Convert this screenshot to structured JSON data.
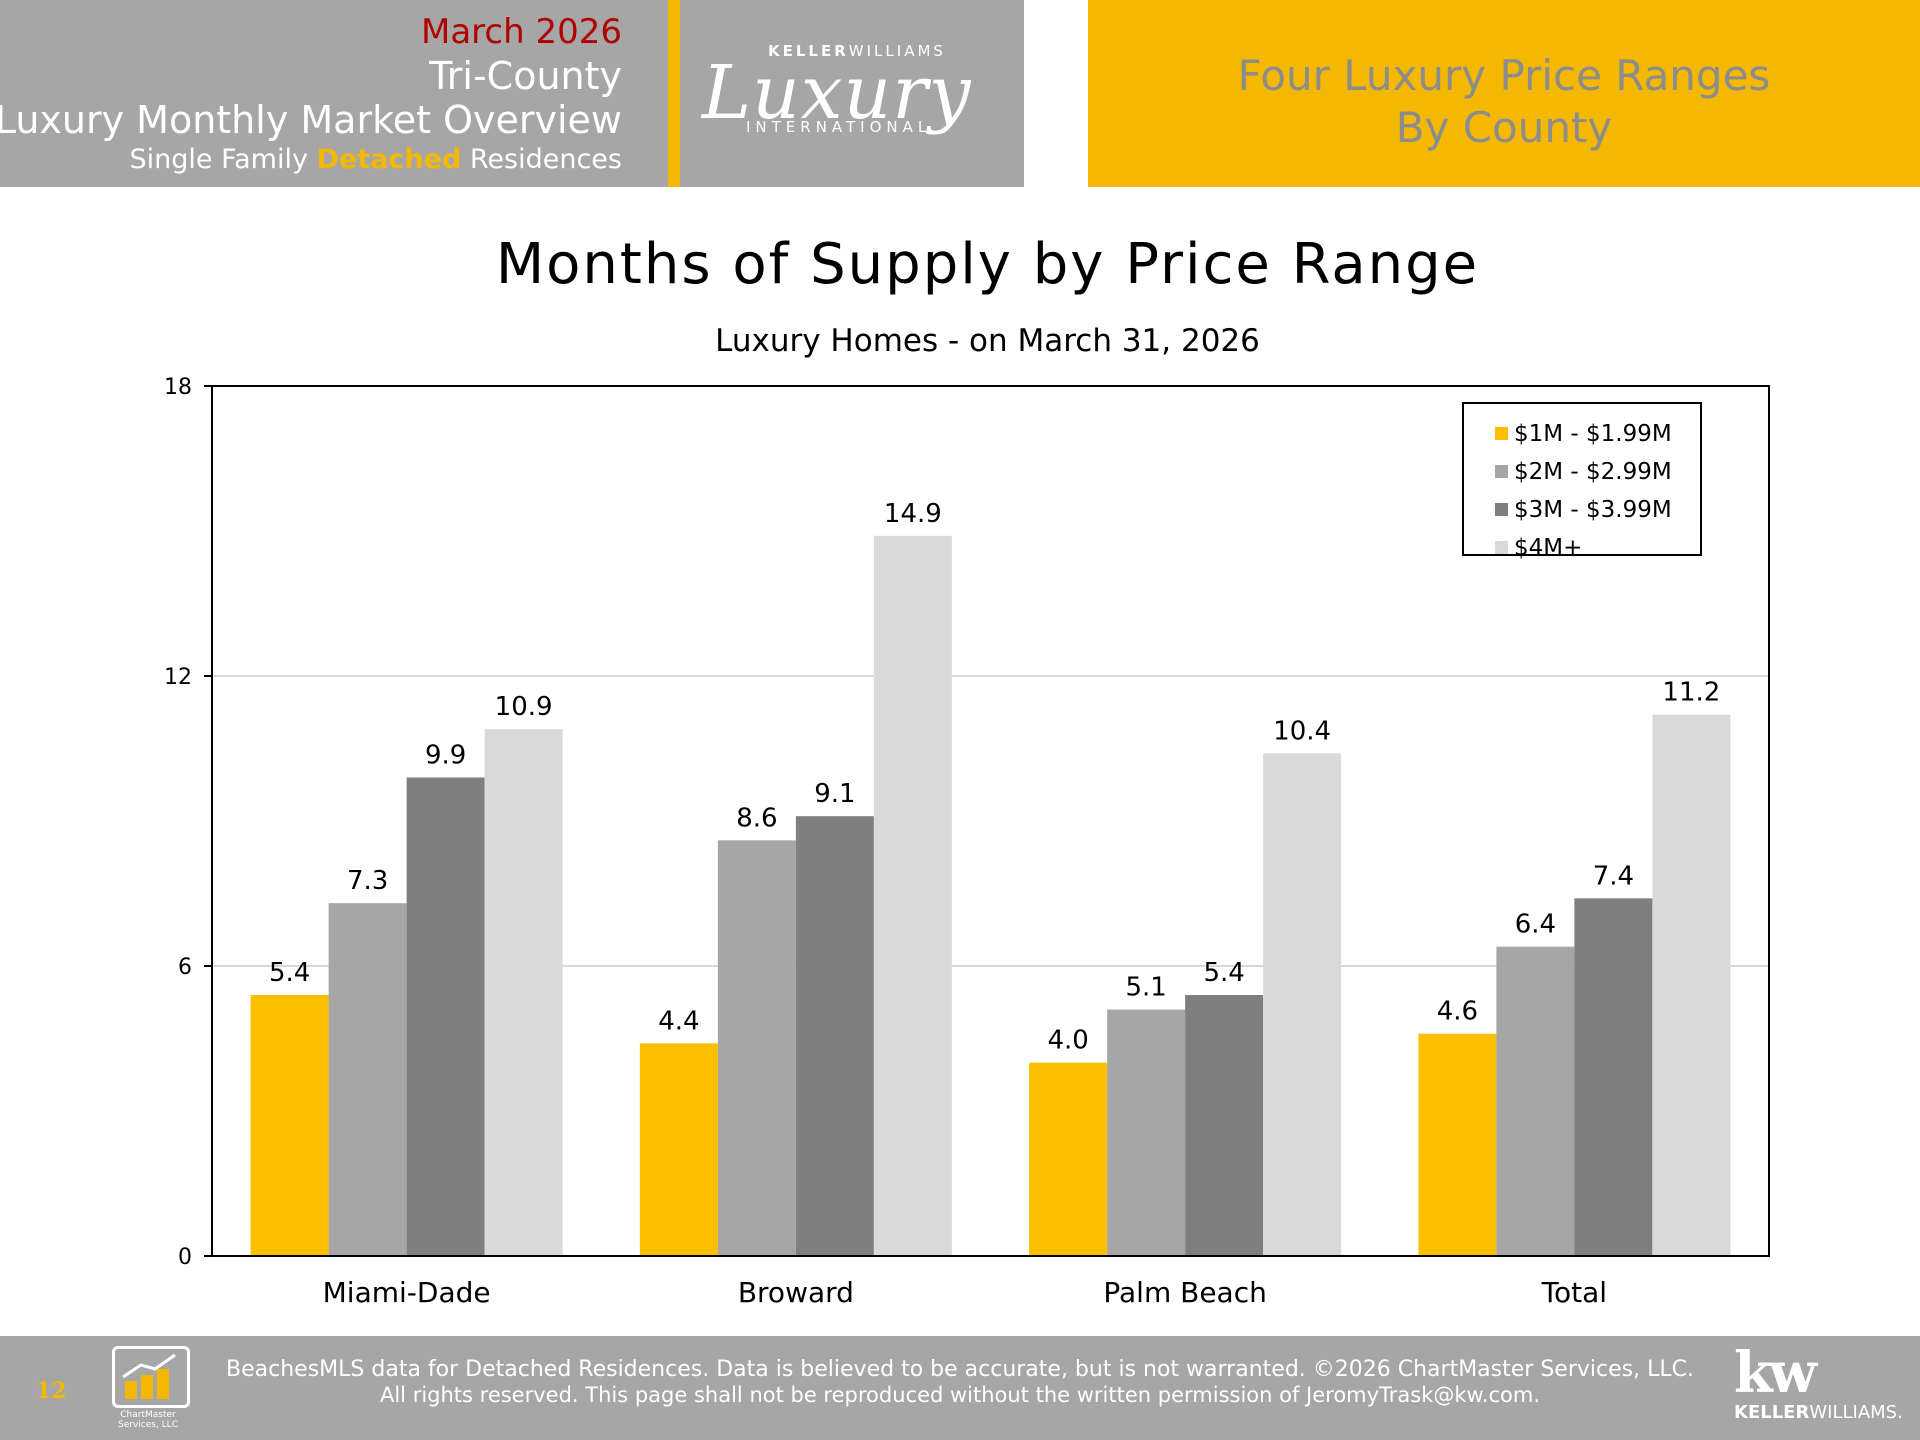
{
  "header": {
    "month": "March 2026",
    "region": "Tri-County",
    "report_title": "Luxury Monthly Market Overview",
    "sub_prefix": "Single Family",
    "sub_highlight": "Detached",
    "sub_suffix": "Residences",
    "logo_top_bold": "KELLER",
    "logo_top_rest": "WILLIAMS",
    "logo_script": "Luxury",
    "logo_bottom": "INTERNATIONAL",
    "right_line1": "Four Luxury Price Ranges",
    "right_line2": "By County",
    "colors": {
      "gray": "#a6a6a6",
      "gold": "#f5b800",
      "red": "#b00000"
    }
  },
  "chart_data": {
    "type": "bar",
    "title": "Months of Supply by Price Range",
    "subtitle": "Luxury Homes - on March 31, 2026",
    "categories": [
      "Miami-Dade",
      "Broward",
      "Palm Beach",
      "Total"
    ],
    "series": [
      {
        "name": "$1M - $1.99M",
        "color": "#fbbf00",
        "values": [
          5.4,
          4.4,
          4.0,
          4.6
        ]
      },
      {
        "name": "$2M - $2.99M",
        "color": "#a6a6a6",
        "values": [
          7.3,
          8.6,
          5.1,
          6.4
        ]
      },
      {
        "name": "$3M - $3.99M",
        "color": "#7f7f7f",
        "values": [
          9.9,
          9.1,
          5.4,
          7.4
        ]
      },
      {
        "name": "$4M+",
        "color": "#d9d9d9",
        "values": [
          10.9,
          14.9,
          10.4,
          11.2
        ]
      }
    ],
    "ylim": [
      0,
      18
    ],
    "yticks": [
      0,
      6,
      12,
      18
    ],
    "grid": true,
    "legend": "top-right"
  },
  "footer": {
    "page_number": "12",
    "cm_logo_text": "ChartMaster Services, LLC",
    "line1": "BeachesMLS data for Detached Residences.  Data is believed to be accurate, but is not warranted.   ©2026  ChartMaster Services, LLC.",
    "line2": "All rights reserved. This page shall not be reproduced without the written permission of JeromyTrask@kw.com.",
    "kw_mark": "kw",
    "kw_name_bold": "KELLER",
    "kw_name_rest": "WILLIAMS."
  }
}
